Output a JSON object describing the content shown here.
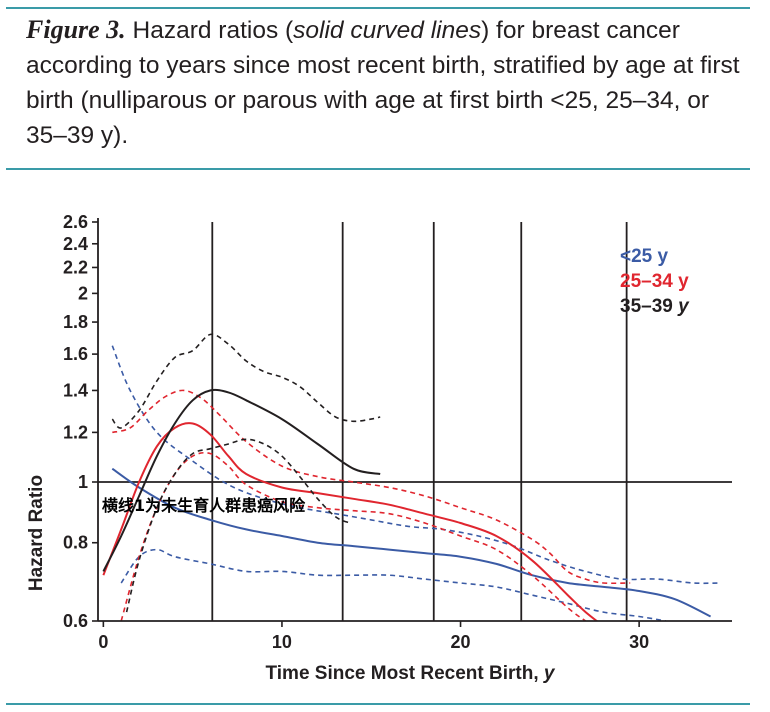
{
  "caption": {
    "figure_label": "Figure 3.",
    "text_before_italic": " Hazard ratios (",
    "italic_text": "solid curved lines",
    "text_after_italic": ") for breast cancer according to years since most recent birth, stratified by age at first birth (nulliparous or parous with age at first birth <25, 25–34, or 35–39 y)."
  },
  "colors": {
    "rule": "#3a9ba8",
    "blue": "#3b5ba5",
    "red": "#e0262f",
    "black": "#231f20"
  },
  "chart_data": {
    "type": "line",
    "xlabel": "Time Since Most Recent Birth, ",
    "xlabel_unit": "y",
    "ylabel": "Hazard Ratio",
    "y_scale": "log",
    "xlim": [
      -0.3,
      35.2
    ],
    "ylim": [
      0.6,
      2.6
    ],
    "x_ticks": [
      0,
      10,
      20,
      30
    ],
    "y_ticks": [
      0.6,
      0.8,
      1,
      1.2,
      1.4,
      1.6,
      1.8,
      2,
      2.2,
      2.4,
      2.6
    ],
    "y_tick_labels": [
      "0.6",
      "0.8",
      "1",
      "1.2",
      "1.4",
      "1.6",
      "1.8",
      "2",
      "2.2",
      "2.4",
      "2.6"
    ],
    "vertical_lines_x": [
      6.1,
      13.4,
      18.5,
      23.4,
      29.3
    ],
    "reference_line_y": 1,
    "annotation": "横线1为未生育人群患癌风险",
    "legend": [
      {
        "label": "<25 y",
        "color": "#3b5ba5",
        "italic_unit": false
      },
      {
        "label": "25–34 y",
        "color": "#e0262f",
        "italic_unit": false
      },
      {
        "label": "35–39 ",
        "unit": "y",
        "color": "#231f20",
        "italic_unit": true
      }
    ],
    "series": [
      {
        "name": "<25 y",
        "kind": "estimate",
        "color": "#3b5ba5",
        "x": [
          0.5,
          2,
          4,
          6,
          8,
          10,
          12,
          14,
          16,
          18,
          20,
          22,
          24,
          26,
          28,
          30,
          32,
          34
        ],
        "y": [
          1.05,
          0.98,
          0.91,
          0.87,
          0.84,
          0.82,
          0.8,
          0.79,
          0.78,
          0.77,
          0.76,
          0.74,
          0.71,
          0.69,
          0.68,
          0.67,
          0.65,
          0.61
        ]
      },
      {
        "name": "<25 y",
        "kind": "ci",
        "color": "#3b5ba5",
        "x": [
          0.5,
          1.5,
          3,
          5,
          7,
          9,
          11,
          13,
          15,
          17,
          19,
          21,
          23,
          25,
          27,
          29,
          31,
          33,
          34.5
        ],
        "y": [
          1.65,
          1.4,
          1.2,
          1.08,
          0.99,
          0.94,
          0.91,
          0.89,
          0.87,
          0.85,
          0.84,
          0.82,
          0.79,
          0.75,
          0.72,
          0.7,
          0.7,
          0.69,
          0.69
        ]
      },
      {
        "name": "<25 y",
        "kind": "ci",
        "color": "#3b5ba5",
        "x": [
          1,
          2,
          3,
          4,
          6,
          8,
          10,
          12,
          14,
          16,
          18,
          20,
          22,
          24,
          26,
          28,
          30,
          31.5
        ],
        "y": [
          0.69,
          0.76,
          0.78,
          0.76,
          0.74,
          0.72,
          0.72,
          0.71,
          0.71,
          0.71,
          0.7,
          0.69,
          0.68,
          0.66,
          0.64,
          0.62,
          0.61,
          0.6
        ]
      },
      {
        "name": "25–34 y",
        "kind": "estimate",
        "color": "#e0262f",
        "x": [
          0,
          1,
          2,
          3,
          4,
          5,
          6,
          7,
          8,
          10,
          12,
          14,
          16,
          18,
          20,
          22,
          24,
          26,
          27,
          28.3
        ],
        "y": [
          0.71,
          0.84,
          1.0,
          1.14,
          1.22,
          1.24,
          1.19,
          1.1,
          1.03,
          0.98,
          0.96,
          0.94,
          0.92,
          0.89,
          0.86,
          0.82,
          0.75,
          0.66,
          0.62,
          0.58
        ]
      },
      {
        "name": "25–34 y",
        "kind": "ci",
        "color": "#e0262f",
        "x": [
          0.5,
          1.5,
          2.5,
          3.5,
          4.5,
          5.5,
          6.5,
          8,
          10,
          12,
          14,
          16,
          18,
          20,
          22,
          24,
          25,
          26,
          27,
          28,
          29.5
        ],
        "y": [
          1.2,
          1.22,
          1.3,
          1.37,
          1.4,
          1.36,
          1.28,
          1.16,
          1.06,
          1.02,
          1.0,
          0.98,
          0.95,
          0.91,
          0.87,
          0.81,
          0.77,
          0.72,
          0.7,
          0.69,
          0.69
        ]
      },
      {
        "name": "25–34 y",
        "kind": "ci",
        "color": "#e0262f",
        "x": [
          1,
          2,
          3,
          4,
          5,
          6,
          7,
          8,
          10,
          12,
          14,
          16,
          18,
          20,
          22,
          24,
          26,
          27
        ],
        "y": [
          0.6,
          0.76,
          0.91,
          1.03,
          1.1,
          1.11,
          1.06,
          0.99,
          0.93,
          0.91,
          0.9,
          0.89,
          0.86,
          0.82,
          0.78,
          0.71,
          0.63,
          0.6
        ]
      },
      {
        "name": "35–39 y",
        "kind": "estimate",
        "color": "#231f20",
        "x": [
          0,
          1,
          2,
          3,
          4,
          5,
          6,
          7,
          8,
          10,
          12,
          14,
          15.5
        ],
        "y": [
          0.72,
          0.82,
          0.95,
          1.1,
          1.24,
          1.35,
          1.4,
          1.39,
          1.35,
          1.26,
          1.15,
          1.05,
          1.03
        ]
      },
      {
        "name": "35–39 y",
        "kind": "ci",
        "color": "#231f20",
        "x": [
          0.5,
          1,
          2,
          3,
          4,
          5,
          6,
          7,
          8,
          9,
          10,
          11,
          12,
          13,
          14,
          15,
          15.5
        ],
        "y": [
          1.26,
          1.22,
          1.3,
          1.45,
          1.58,
          1.62,
          1.72,
          1.66,
          1.56,
          1.5,
          1.47,
          1.42,
          1.34,
          1.27,
          1.25,
          1.26,
          1.27
        ]
      },
      {
        "name": "35–39 y",
        "kind": "ci",
        "color": "#231f20",
        "x": [
          1.3,
          2,
          3,
          4,
          5,
          6,
          7,
          8,
          9,
          10,
          11,
          12,
          13,
          13.8
        ],
        "y": [
          0.62,
          0.75,
          0.91,
          1.03,
          1.11,
          1.13,
          1.15,
          1.17,
          1.15,
          1.1,
          1.02,
          0.94,
          0.88,
          0.86
        ]
      }
    ]
  }
}
